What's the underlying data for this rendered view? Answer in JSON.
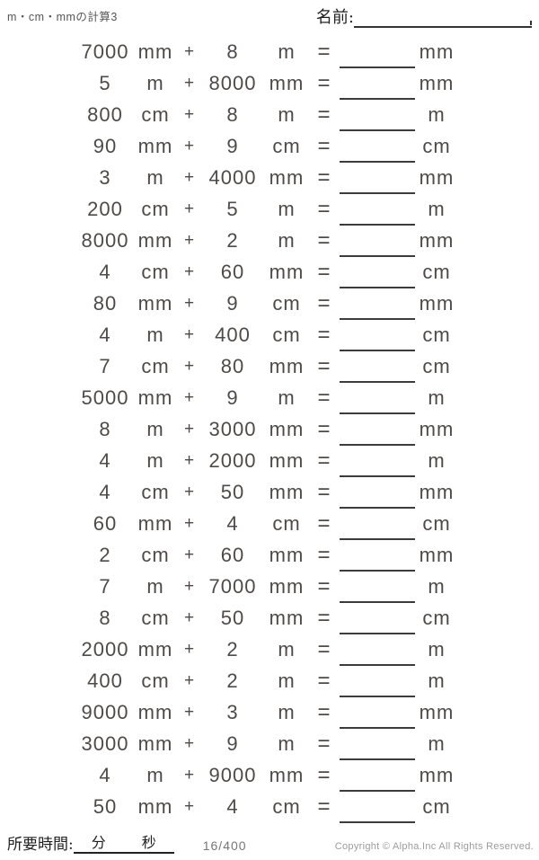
{
  "page": {
    "title": "m・cm・mmの計算3",
    "name_label": "名前:"
  },
  "symbols": {
    "plus": "+",
    "equals": "="
  },
  "colors": {
    "ink": "#4e4a48",
    "line": "#3c3c3c",
    "label": "#1f1f1f",
    "muted": "#9c9c9c"
  },
  "problems": [
    {
      "n1": "7000",
      "u1": "mm",
      "n2": "8",
      "u2": "m",
      "ua": "mm"
    },
    {
      "n1": "5",
      "u1": "m",
      "n2": "8000",
      "u2": "mm",
      "ua": "mm"
    },
    {
      "n1": "800",
      "u1": "cm",
      "n2": "8",
      "u2": "m",
      "ua": "m"
    },
    {
      "n1": "90",
      "u1": "mm",
      "n2": "9",
      "u2": "cm",
      "ua": "cm"
    },
    {
      "n1": "3",
      "u1": "m",
      "n2": "4000",
      "u2": "mm",
      "ua": "mm"
    },
    {
      "n1": "200",
      "u1": "cm",
      "n2": "5",
      "u2": "m",
      "ua": "m"
    },
    {
      "n1": "8000",
      "u1": "mm",
      "n2": "2",
      "u2": "m",
      "ua": "mm"
    },
    {
      "n1": "4",
      "u1": "cm",
      "n2": "60",
      "u2": "mm",
      "ua": "cm"
    },
    {
      "n1": "80",
      "u1": "mm",
      "n2": "9",
      "u2": "cm",
      "ua": "mm"
    },
    {
      "n1": "4",
      "u1": "m",
      "n2": "400",
      "u2": "cm",
      "ua": "cm"
    },
    {
      "n1": "7",
      "u1": "cm",
      "n2": "80",
      "u2": "mm",
      "ua": "cm"
    },
    {
      "n1": "5000",
      "u1": "mm",
      "n2": "9",
      "u2": "m",
      "ua": "m"
    },
    {
      "n1": "8",
      "u1": "m",
      "n2": "3000",
      "u2": "mm",
      "ua": "mm"
    },
    {
      "n1": "4",
      "u1": "m",
      "n2": "2000",
      "u2": "mm",
      "ua": "m"
    },
    {
      "n1": "4",
      "u1": "cm",
      "n2": "50",
      "u2": "mm",
      "ua": "mm"
    },
    {
      "n1": "60",
      "u1": "mm",
      "n2": "4",
      "u2": "cm",
      "ua": "cm"
    },
    {
      "n1": "2",
      "u1": "cm",
      "n2": "60",
      "u2": "mm",
      "ua": "mm"
    },
    {
      "n1": "7",
      "u1": "m",
      "n2": "7000",
      "u2": "mm",
      "ua": "m"
    },
    {
      "n1": "8",
      "u1": "cm",
      "n2": "50",
      "u2": "mm",
      "ua": "cm"
    },
    {
      "n1": "2000",
      "u1": "mm",
      "n2": "2",
      "u2": "m",
      "ua": "m"
    },
    {
      "n1": "400",
      "u1": "cm",
      "n2": "2",
      "u2": "m",
      "ua": "m"
    },
    {
      "n1": "9000",
      "u1": "mm",
      "n2": "3",
      "u2": "m",
      "ua": "mm"
    },
    {
      "n1": "3000",
      "u1": "mm",
      "n2": "9",
      "u2": "m",
      "ua": "m"
    },
    {
      "n1": "4",
      "u1": "m",
      "n2": "9000",
      "u2": "mm",
      "ua": "mm"
    },
    {
      "n1": "50",
      "u1": "mm",
      "n2": "4",
      "u2": "cm",
      "ua": "cm"
    }
  ],
  "footer": {
    "time_label": "所要時間:",
    "minutes_label": "分",
    "seconds_label": "秒",
    "page_number": "16/400",
    "copyright": "Copyright © Alpha.Inc All Rights Reserved."
  }
}
